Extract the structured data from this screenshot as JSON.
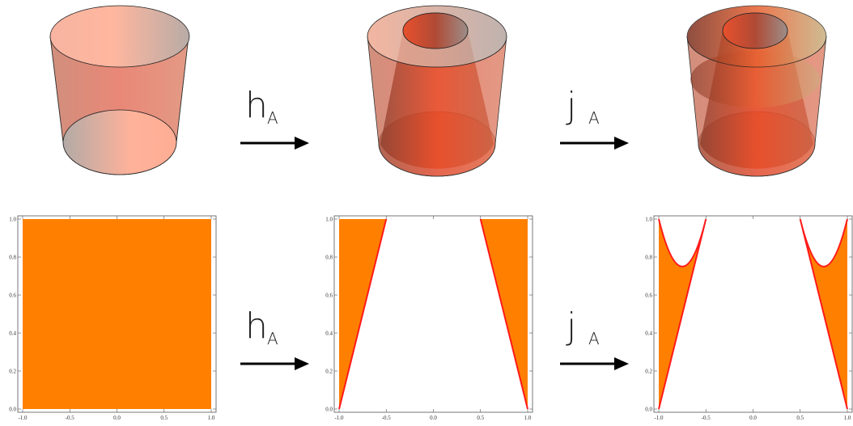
{
  "arrows": [
    {
      "label": "h",
      "subscript": "A"
    },
    {
      "label": "j",
      "subscript": "A"
    },
    {
      "label": "h",
      "subscript": "A"
    },
    {
      "label": "j",
      "subscript": "A"
    }
  ],
  "plots": [
    {
      "xticks": [
        "-1.0",
        "-0.5",
        "0.0",
        "0.5",
        "1.0"
      ],
      "yticks": [
        "0.0",
        "0.2",
        "0.4",
        "0.6",
        "0.8",
        "1.0"
      ]
    },
    {
      "xticks": [
        "-1.0",
        "-0.5",
        "0.0",
        "0.5",
        "1.0"
      ],
      "yticks": [
        "0.0",
        "0.2",
        "0.4",
        "0.6",
        "0.8",
        "1.0"
      ]
    },
    {
      "xticks": [
        "-1.0",
        "-0.5",
        "0.0",
        "0.5",
        "1.0"
      ],
      "yticks": [
        "0.0",
        "0.2",
        "0.4",
        "0.6",
        "0.8",
        "1.0"
      ]
    }
  ]
}
